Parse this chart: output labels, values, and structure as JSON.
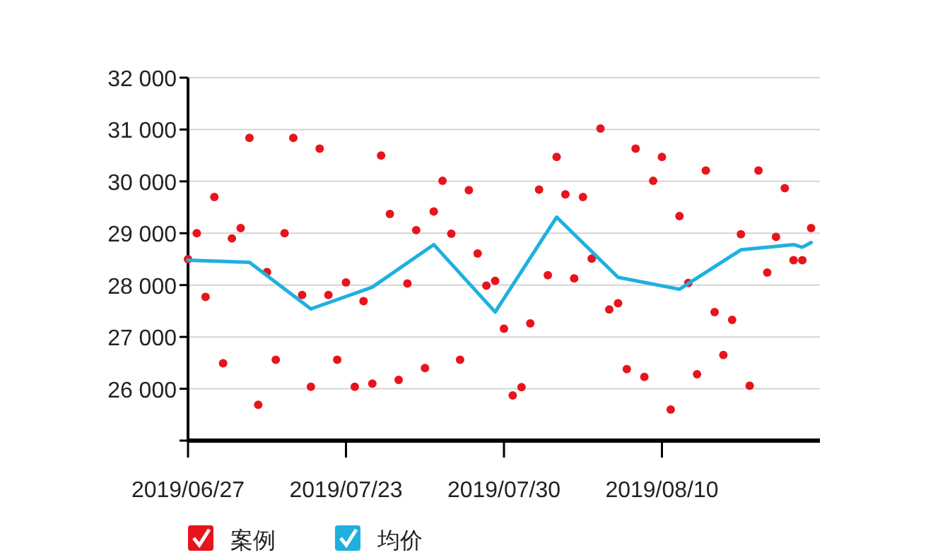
{
  "chart_data": {
    "type": "scatter",
    "ylim": [
      25000,
      32000
    ],
    "categories": [
      "2019/06/27",
      null,
      null,
      null,
      null,
      null,
      null,
      null,
      null,
      null,
      null,
      null,
      null,
      null,
      null,
      null,
      null,
      null,
      "2019/07/23",
      null,
      null,
      null,
      null,
      null,
      null,
      null,
      null,
      null,
      null,
      null,
      null,
      null,
      null,
      null,
      null,
      null,
      "2019/07/30",
      null,
      null,
      null,
      null,
      null,
      null,
      null,
      null,
      null,
      null,
      null,
      null,
      null,
      null,
      null,
      null,
      null,
      "2019/08/10",
      null,
      null,
      null,
      null,
      null,
      null,
      null,
      null,
      null,
      null,
      null,
      null,
      null,
      null,
      null,
      null,
      null
    ],
    "yticks": [
      {
        "value": 25000,
        "label": null
      },
      {
        "value": 26000,
        "label": "26 000"
      },
      {
        "value": 27000,
        "label": "27 000"
      },
      {
        "value": 28000,
        "label": "28 000"
      },
      {
        "value": 29000,
        "label": "29 000"
      },
      {
        "value": 30000,
        "label": "30 000"
      },
      {
        "value": 31000,
        "label": "31 000"
      },
      {
        "value": 32000,
        "label": "32 000"
      }
    ],
    "grid": "y",
    "legend": "bottom",
    "series": [
      {
        "name": "案例",
        "marker": "circle",
        "color": "#e8141c",
        "values": [
          28500,
          29000,
          27770,
          29700,
          26490,
          28900,
          29100,
          30840,
          25690,
          28250,
          26560,
          29000,
          30840,
          27810,
          26040,
          30630,
          27810,
          26560,
          28050,
          26040,
          27690,
          26100,
          30500,
          29370,
          26170,
          28030,
          29060,
          26400,
          29420,
          30010,
          28990,
          26560,
          29830,
          28610,
          27990,
          28080,
          27160,
          25870,
          26030,
          27260,
          29840,
          28190,
          30470,
          29750,
          28130,
          29700,
          28510,
          31020,
          27530,
          27650,
          26380,
          30630,
          26230,
          30010,
          30470,
          25600,
          29330,
          28040,
          26280,
          30210,
          27480,
          26650,
          27330,
          28980,
          26060,
          30210,
          28240,
          28930,
          29870,
          28480,
          28480,
          29100
        ]
      },
      {
        "name": "均价",
        "type": "line",
        "marker": "none",
        "color": "#1fb0e0",
        "values": [
          28480,
          null,
          null,
          null,
          null,
          null,
          null,
          28440,
          null,
          null,
          null,
          null,
          null,
          null,
          27540,
          null,
          null,
          null,
          null,
          null,
          null,
          27960,
          null,
          null,
          null,
          null,
          null,
          null,
          28780,
          null,
          null,
          null,
          null,
          null,
          null,
          27480,
          null,
          null,
          null,
          null,
          null,
          null,
          29310,
          null,
          null,
          null,
          null,
          null,
          null,
          28150,
          null,
          null,
          null,
          null,
          null,
          null,
          27920,
          null,
          null,
          null,
          null,
          null,
          null,
          28680,
          null,
          null,
          null,
          null,
          null,
          28780,
          28730,
          28820
        ]
      }
    ]
  }
}
